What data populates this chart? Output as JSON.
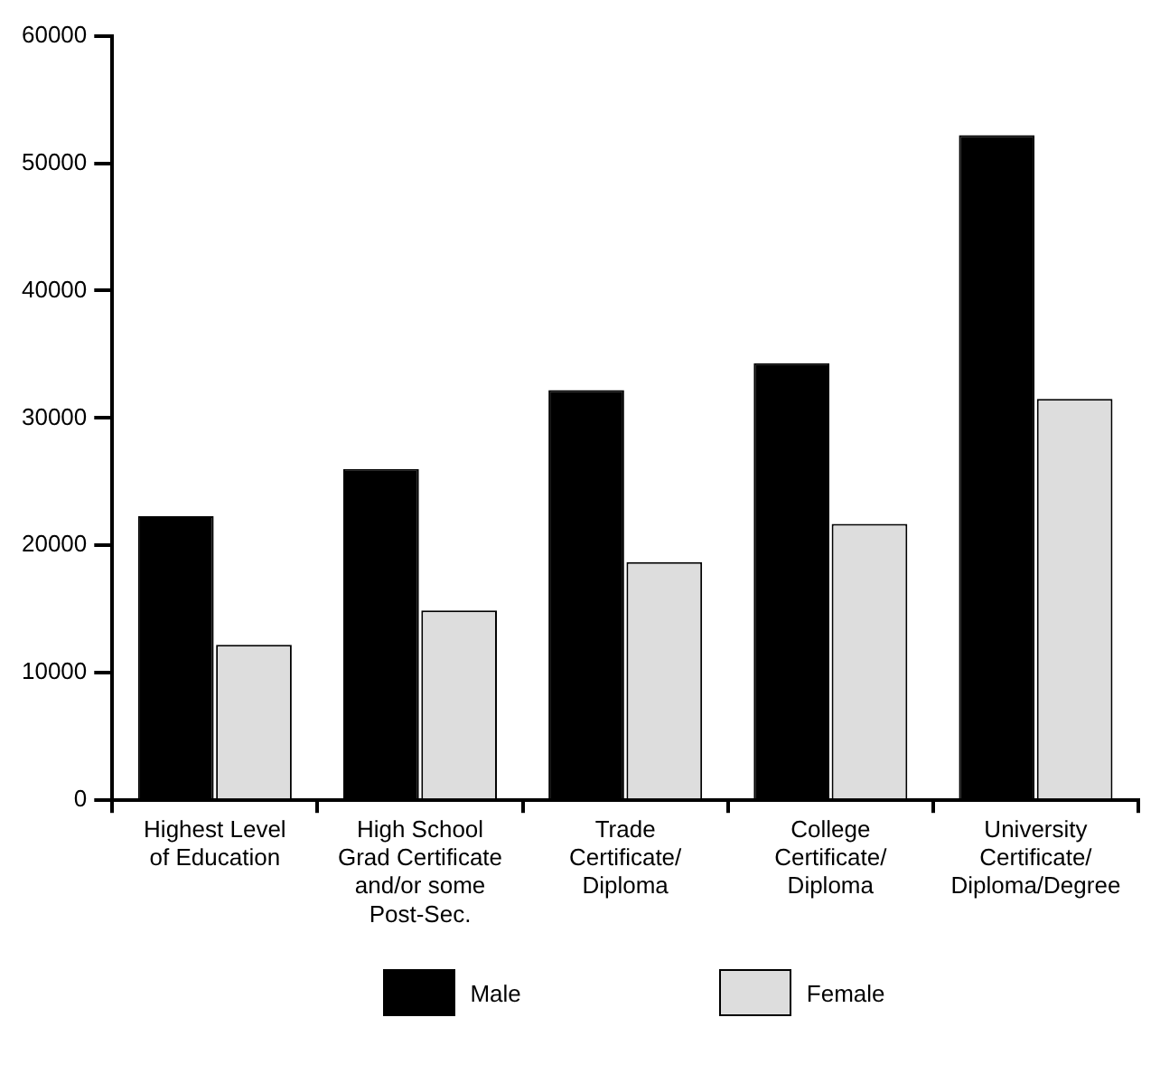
{
  "chart_data": {
    "type": "bar",
    "categories": [
      "Highest Level\nof Education",
      "High School\nGrad Certificate\nand/or some\nPost-Sec.",
      "Trade\nCertificate/\nDiploma",
      "College\nCertificate/\nDiploma",
      "University\nCertificate/\nDiploma/Degree"
    ],
    "series": [
      {
        "name": "Male",
        "color": "#000000",
        "values": [
          22300,
          26000,
          32200,
          34300,
          52200
        ]
      },
      {
        "name": "Female",
        "color": "#dddddd",
        "values": [
          12200,
          14900,
          18700,
          21700,
          31500
        ]
      }
    ],
    "ylim": [
      0,
      60000
    ],
    "yticks": [
      0,
      10000,
      20000,
      30000,
      40000,
      50000,
      60000
    ],
    "grid": false,
    "legend": "bottom"
  }
}
